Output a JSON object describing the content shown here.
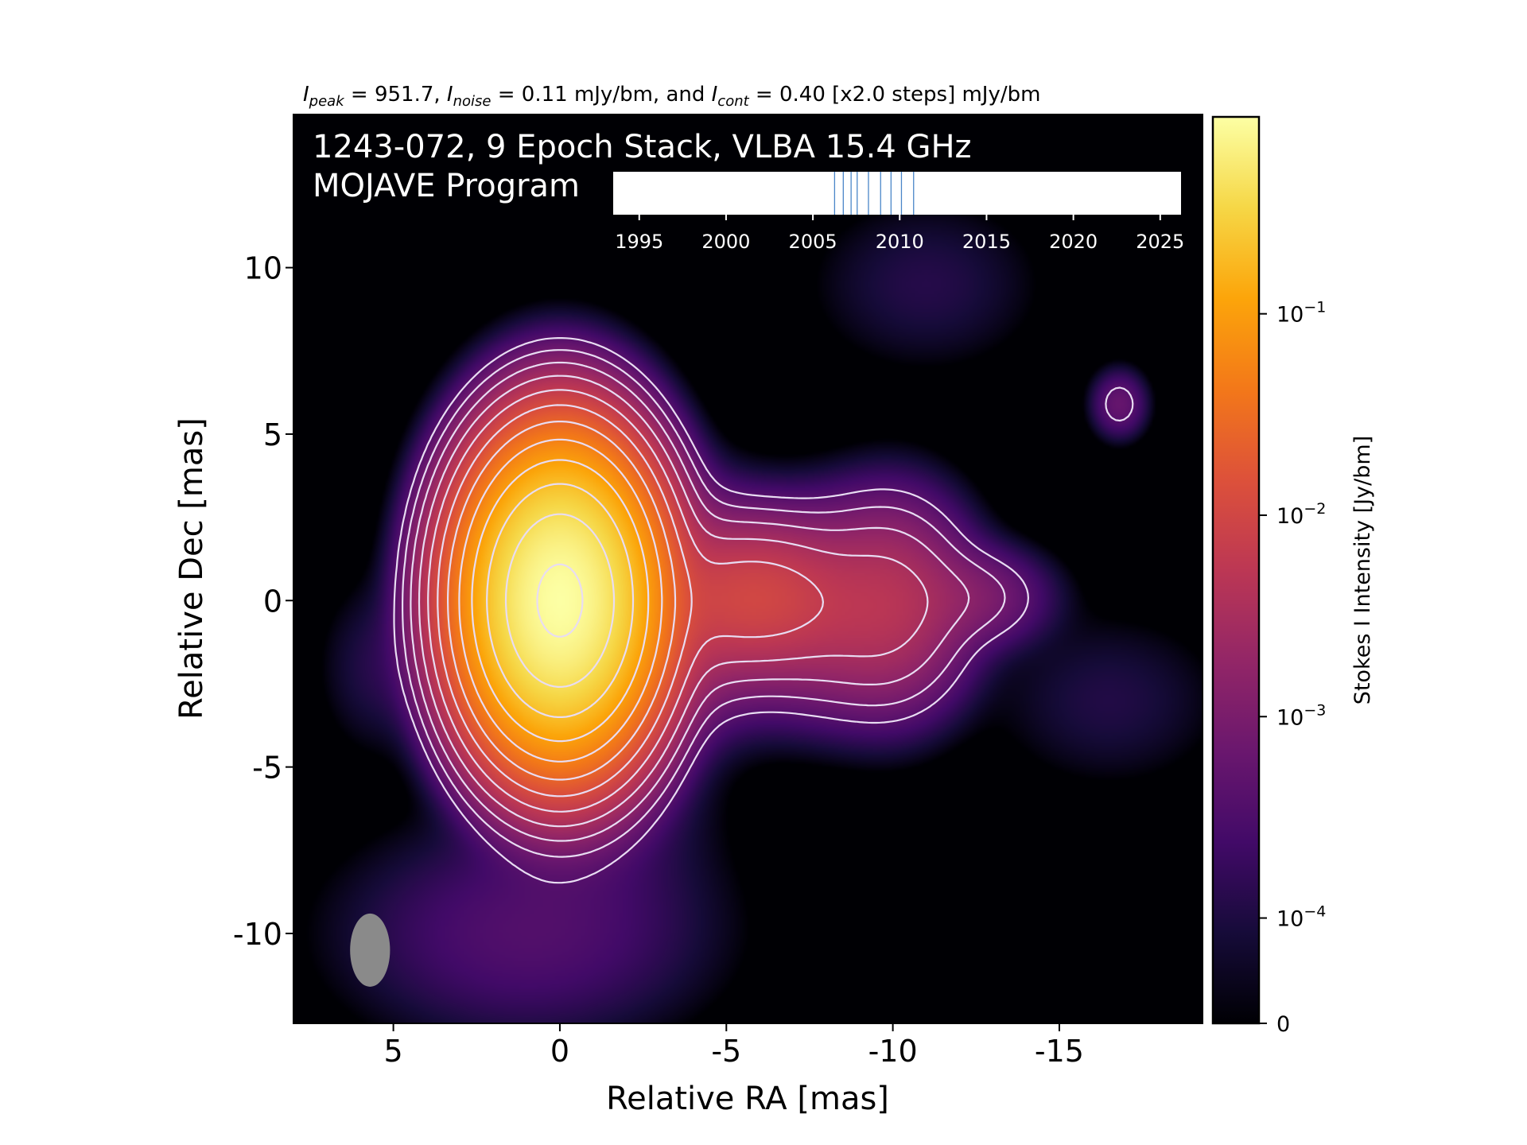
{
  "header": {
    "peak_symbol": "I",
    "peak_sub": "peak",
    "peak_text": " = 951.7, ",
    "noise_symbol": "I",
    "noise_sub": "noise",
    "noise_text": " = 0.11 mJy/bm, and ",
    "cont_symbol": "I",
    "cont_sub": "cont",
    "cont_text": " = 0.40 [x2.0 steps] mJy/bm"
  },
  "image_title": {
    "line1": "1243-072, 9 Epoch Stack, VLBA 15.4 GHz",
    "line2": "MOJAVE Program"
  },
  "colors": {
    "background": "#000004",
    "contour": "#e8dcf2",
    "beam": "#8a8a8a",
    "epoch_line": "#4a86c8"
  },
  "chart_data": [
    {
      "type": "heatmap",
      "xlabel": "Relative RA [mas]",
      "ylabel": "Relative Dec [mas]",
      "xlim": [
        8,
        -19.3
      ],
      "ylim": [
        -12.7,
        14.6
      ],
      "x_ticks": [
        5,
        0,
        -5,
        -10,
        -15
      ],
      "x_tick_labels": [
        "5",
        "0",
        "-5",
        "-10",
        "-15"
      ],
      "y_ticks": [
        10,
        5,
        0,
        -5,
        -10
      ],
      "y_tick_labels": [
        "10",
        "5",
        "0",
        "-5",
        "-10"
      ],
      "peak_jy": 0.9517,
      "contour_base_mjy": 0.4,
      "contour_step_factor": 2.0,
      "contour_levels": 12,
      "colormap": "inferno",
      "core": {
        "x": 0,
        "y": 0,
        "sx": 1.25,
        "sy": 2.0,
        "amp": 0.95
      },
      "components": [
        {
          "x": -5.9,
          "y": 0.1,
          "sx": 1.4,
          "sy": 1.1,
          "amp": 0.0075
        },
        {
          "x": -3.8,
          "y": -0.2,
          "sx": 1.5,
          "sy": 1.6,
          "amp": 0.0035
        },
        {
          "x": -8.0,
          "y": -0.3,
          "sx": 1.6,
          "sy": 1.5,
          "amp": 0.003
        },
        {
          "x": -10.0,
          "y": -0.1,
          "sx": 1.2,
          "sy": 1.6,
          "amp": 0.0032
        },
        {
          "x": -12.4,
          "y": 0.1,
          "sx": 1.2,
          "sy": 0.8,
          "amp": 0.001
        },
        {
          "x": -16.8,
          "y": 5.9,
          "sx": 0.45,
          "sy": 0.55,
          "amp": 0.0006
        },
        {
          "x": 1.0,
          "y": -10.0,
          "sx": 3.0,
          "sy": 1.8,
          "amp": 0.00035
        },
        {
          "x": -1.5,
          "y": -6.0,
          "sx": 1.8,
          "sy": 2.0,
          "amp": 0.00015
        },
        {
          "x": 5.5,
          "y": -2.0,
          "sx": 1.0,
          "sy": 1.5,
          "amp": 0.00012
        },
        {
          "x": -11.0,
          "y": 9.5,
          "sx": 2.0,
          "sy": 1.5,
          "amp": 0.00012
        },
        {
          "x": -16.5,
          "y": -3.0,
          "sx": 2.0,
          "sy": 1.5,
          "amp": 0.00011
        }
      ],
      "beam": {
        "x": 5.7,
        "y": -10.5,
        "major_mas": 2.2,
        "minor_mas": 1.2,
        "pa_deg": 0
      }
    },
    {
      "type": "colorbar",
      "label": "Stokes I Intensity [Jy/bm]",
      "scale": "log",
      "range_jy": [
        3e-05,
        0.95
      ],
      "ticks": [
        0.1,
        0.01,
        0.001,
        0.0001,
        0
      ],
      "tick_bases": [
        "10",
        "10",
        "10",
        "10",
        "0"
      ],
      "tick_exps": [
        "−1",
        "−2",
        "−3",
        "−4",
        ""
      ]
    },
    {
      "type": "timeline",
      "xlim": [
        1993.5,
        2026.2
      ],
      "ticks": [
        1995,
        2000,
        2005,
        2010,
        2015,
        2020,
        2025
      ],
      "tick_labels": [
        "1995",
        "2000",
        "2005",
        "2010",
        "2015",
        "2020",
        "2025"
      ],
      "epochs": [
        2006.25,
        2006.75,
        2007.2,
        2007.55,
        2008.2,
        2008.9,
        2009.5,
        2010.1,
        2010.8
      ]
    }
  ]
}
